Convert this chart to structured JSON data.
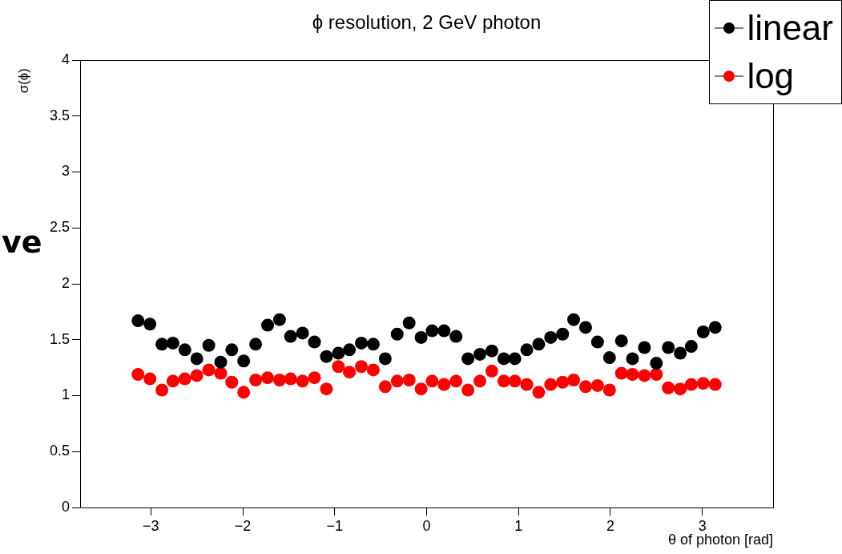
{
  "chart_data": {
    "type": "scatter",
    "title": "ϕ resolution, 2 GeV photon",
    "xlabel": "θ of photon [rad]",
    "ylabel": "σ(ϕ)",
    "x": [
      -3.14,
      -3.01,
      -2.88,
      -2.76,
      -2.63,
      -2.5,
      -2.37,
      -2.24,
      -2.12,
      -1.99,
      -1.86,
      -1.73,
      -1.6,
      -1.48,
      -1.35,
      -1.22,
      -1.09,
      -0.96,
      -0.84,
      -0.71,
      -0.58,
      -0.45,
      -0.32,
      -0.19,
      -0.06,
      0.06,
      0.19,
      0.32,
      0.45,
      0.58,
      0.71,
      0.84,
      0.96,
      1.09,
      1.22,
      1.35,
      1.48,
      1.6,
      1.73,
      1.86,
      1.99,
      2.12,
      2.24,
      2.37,
      2.5,
      2.63,
      2.76,
      2.88,
      3.01,
      3.14
    ],
    "series": [
      {
        "name": "linear",
        "color": "#000000",
        "values": [
          1.67,
          1.64,
          1.46,
          1.47,
          1.41,
          1.33,
          1.45,
          1.3,
          1.41,
          1.31,
          1.46,
          1.63,
          1.68,
          1.53,
          1.56,
          1.48,
          1.35,
          1.38,
          1.41,
          1.47,
          1.46,
          1.33,
          1.55,
          1.65,
          1.52,
          1.58,
          1.58,
          1.53,
          1.33,
          1.37,
          1.4,
          1.33,
          1.33,
          1.41,
          1.46,
          1.52,
          1.55,
          1.68,
          1.61,
          1.48,
          1.34,
          1.49,
          1.33,
          1.43,
          1.29,
          1.43,
          1.38,
          1.44,
          1.57,
          1.61
        ]
      },
      {
        "name": "log",
        "color": "#ff0000",
        "values": [
          1.19,
          1.15,
          1.05,
          1.13,
          1.15,
          1.18,
          1.23,
          1.2,
          1.12,
          1.03,
          1.14,
          1.16,
          1.14,
          1.15,
          1.13,
          1.16,
          1.06,
          1.26,
          1.21,
          1.26,
          1.23,
          1.08,
          1.13,
          1.14,
          1.06,
          1.13,
          1.1,
          1.13,
          1.05,
          1.13,
          1.22,
          1.13,
          1.13,
          1.1,
          1.03,
          1.1,
          1.12,
          1.14,
          1.08,
          1.09,
          1.05,
          1.2,
          1.19,
          1.18,
          1.19,
          1.07,
          1.06,
          1.1,
          1.11,
          1.1
        ]
      }
    ],
    "xlim": [
      -3.77,
      3.77
    ],
    "xticks": [
      -3,
      -2,
      -1,
      0,
      1,
      2,
      3
    ],
    "ylim": [
      0,
      4
    ],
    "yticks": [
      0,
      0.5,
      1,
      1.5,
      2,
      2.5,
      3,
      3.5,
      4
    ],
    "grid": false,
    "legend": "top right",
    "marker": "circle",
    "annotations": [
      "ve"
    ]
  }
}
